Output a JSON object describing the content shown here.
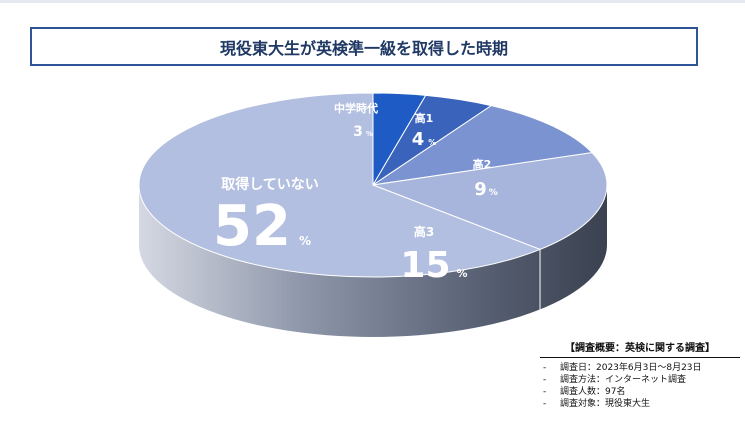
{
  "title": "現役東大生が英検準一級を取得した時期",
  "chart_data": {
    "type": "pie",
    "title": "現役東大生が英検準一級を取得した時期",
    "unit": "%",
    "slices": [
      {
        "label": "中学時代",
        "value": 3,
        "color": "#1f5bc4"
      },
      {
        "label": "高1",
        "value": 4,
        "color": "#3a63bb"
      },
      {
        "label": "高2",
        "value": 9,
        "color": "#7b93d0"
      },
      {
        "label": "高3",
        "value": 15,
        "color": "#a7b5dc"
      },
      {
        "label": "取得していない",
        "value": 52,
        "color": "#b3bfe0"
      }
    ],
    "note": "3D pie chart"
  },
  "survey": {
    "title": "【調査概要：英検に関する調査】",
    "items": [
      "調査日：2023年6月3日～8月23日",
      "調査方法：インターネット調査",
      "調査人数：97名",
      "調査対象：現役東大生"
    ]
  }
}
